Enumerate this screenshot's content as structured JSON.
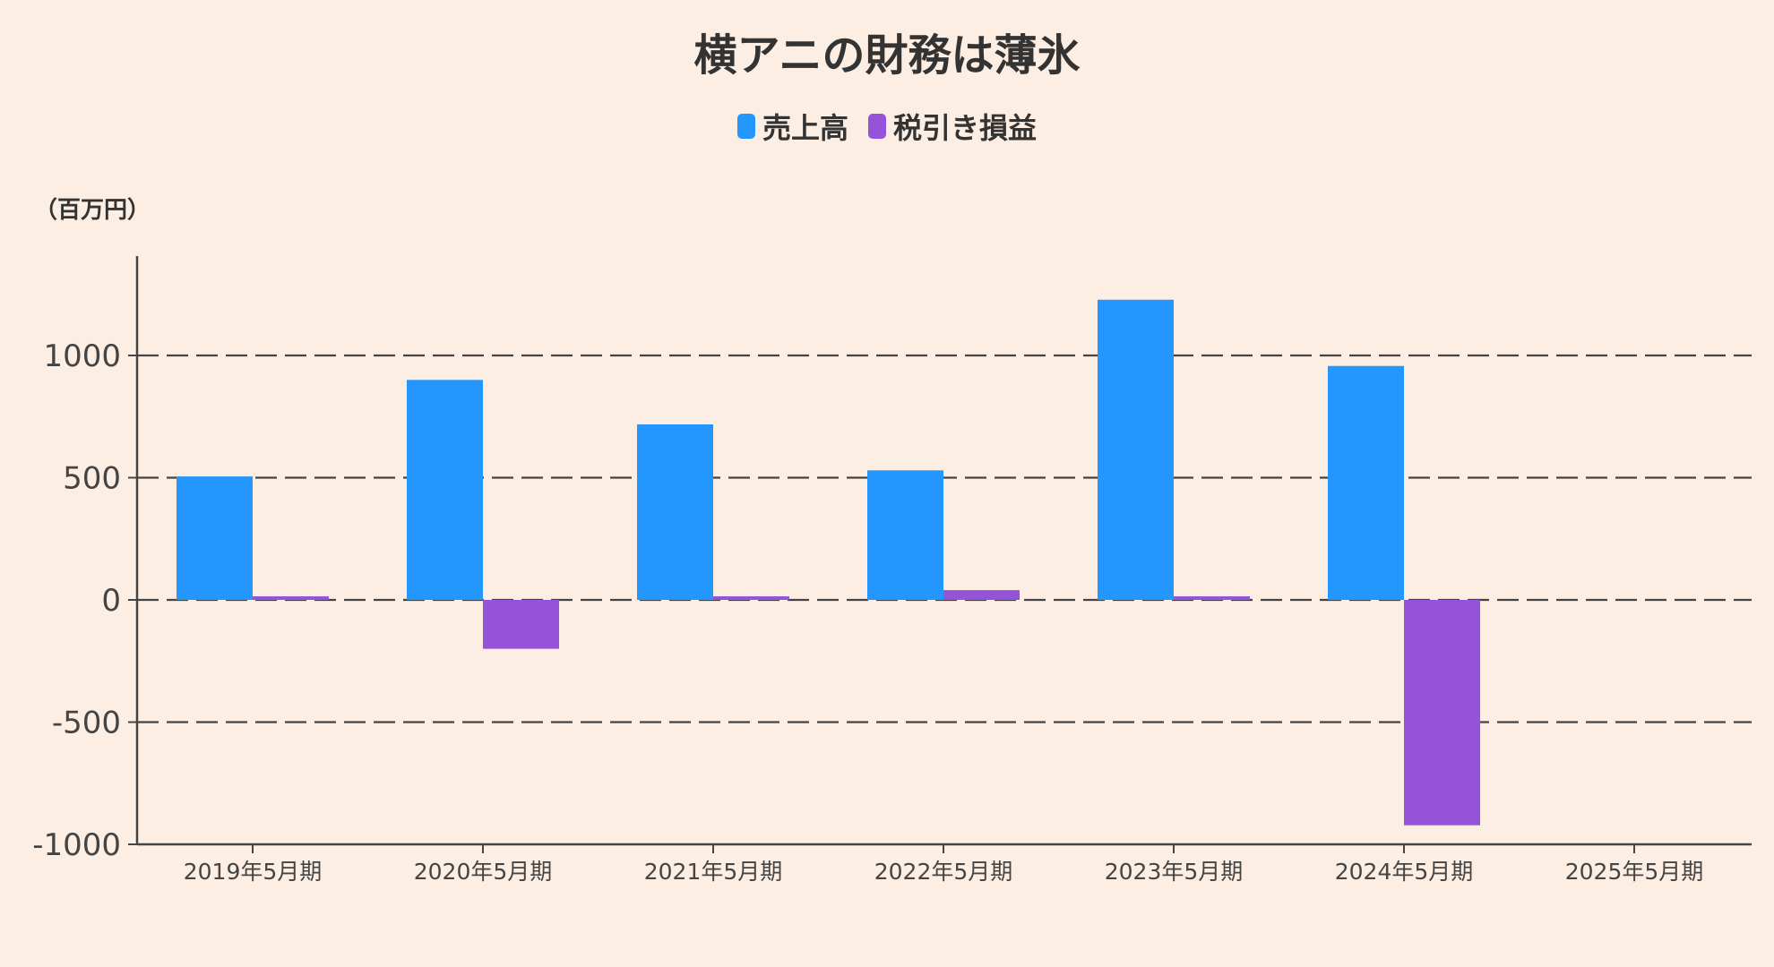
{
  "chart_data": {
    "type": "bar",
    "title": "横アニの財務は薄氷",
    "unit_label": "（百万円）",
    "categories": [
      "2019年5月期",
      "2020年5月期",
      "2021年5月期",
      "2022年5月期",
      "2023年5月期",
      "2024年5月期",
      "2025年5月期"
    ],
    "series": [
      {
        "name": "売上高",
        "color": "#2397FD",
        "values": [
          505,
          900,
          718,
          530,
          1228,
          957,
          null
        ]
      },
      {
        "name": "税引き損益",
        "color": "#9553DA",
        "values": [
          12,
          -200,
          8,
          40,
          12,
          -922,
          null
        ]
      }
    ],
    "yticks": [
      1000,
      500,
      0,
      -500,
      -1000
    ],
    "ylim": [
      -1000,
      1400
    ],
    "grid": true,
    "legend_position": "top-center"
  }
}
